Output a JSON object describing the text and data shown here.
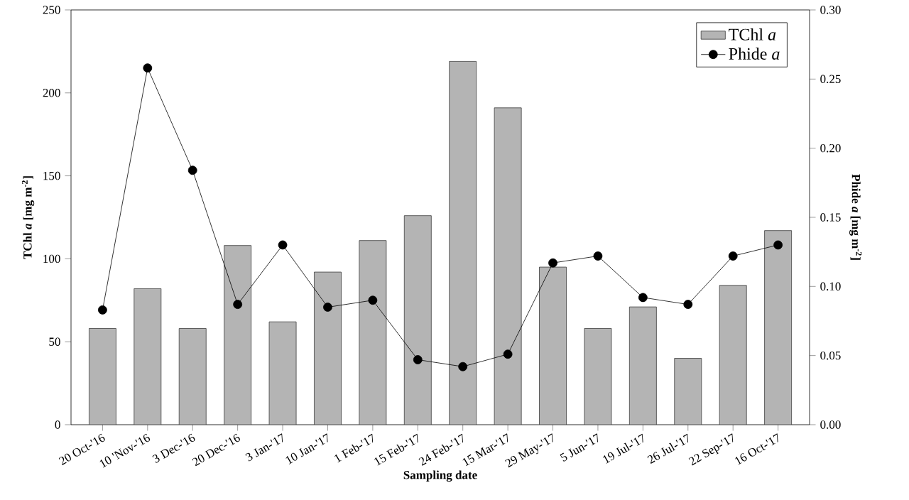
{
  "chart_data": {
    "type": "bar",
    "xlabel": "Sampling date",
    "ylabel": "TChl *a* [mg m$^{-2}$]",
    "y2label": "Phide *a* [mg m$^{-2}$]",
    "categories": [
      "20 Oct-'16",
      "10 'Nov-'16",
      "3 Dec-'16",
      "20 Dec-'16",
      "3 Jan-'17",
      "10 Jan-'17",
      "1 Feb-'17",
      "15 Feb-'17",
      "24 Feb-'17",
      "15 Mar-'17",
      "29 May-'17",
      "5 Jun-'17",
      "19 Jul-'17",
      "26 Jul-'17",
      "22 Sep-'17",
      "16 Oct-'17"
    ],
    "series": [
      {
        "name": "TChl *a*",
        "color": "#b4b4b4",
        "values": [
          58,
          82,
          58,
          108,
          62,
          92,
          111,
          126,
          219,
          191,
          95,
          58,
          71,
          40,
          84,
          117
        ]
      },
      {
        "name": "Phide *a*",
        "type": "line",
        "axis": "y2",
        "color": "#000000",
        "marker": "circle",
        "values": [
          0.083,
          0.258,
          0.184,
          0.087,
          0.13,
          0.085,
          0.09,
          0.047,
          0.042,
          0.051,
          0.117,
          0.122,
          0.092,
          0.087,
          0.122,
          0.13
        ]
      }
    ],
    "ylim": [
      0,
      250
    ],
    "yticks": [
      0,
      50,
      100,
      150,
      200,
      250
    ],
    "y2lim": [
      0,
      0.3
    ],
    "y2ticks": [
      {
        "value": 0,
        "label": "0.00"
      },
      {
        "value": 0.05,
        "label": "0.05"
      },
      {
        "value": 0.1,
        "label": "0.10"
      },
      {
        "value": 0.15,
        "label": "0.15"
      },
      {
        "value": 0.2,
        "label": "0.20"
      },
      {
        "value": 0.25,
        "label": "0.25"
      },
      {
        "value": 0.3,
        "label": "0.30"
      }
    ],
    "grid": false,
    "legend": "top right"
  }
}
